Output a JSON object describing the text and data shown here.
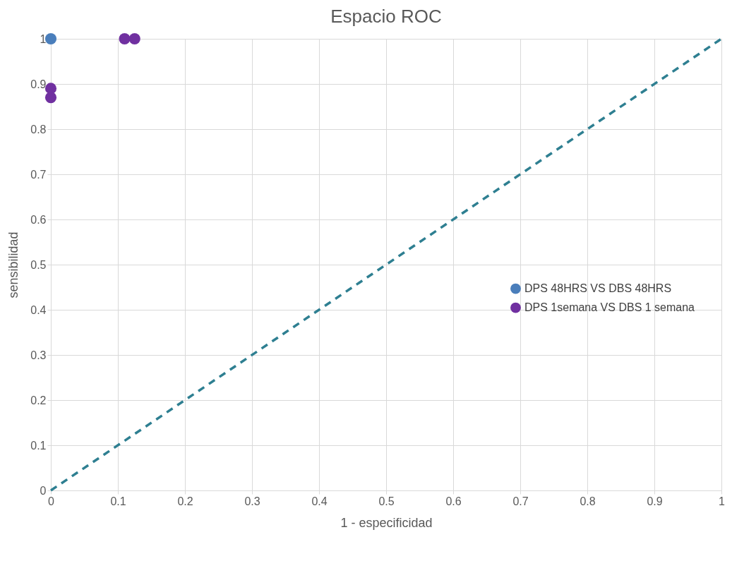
{
  "chart_data": {
    "type": "scatter",
    "title": "Espacio ROC",
    "xlabel": "1 - especificidad",
    "ylabel": "sensibilidad",
    "xlim": [
      0,
      1
    ],
    "ylim": [
      0,
      1
    ],
    "xticks": [
      0,
      0.1,
      0.2,
      0.3,
      0.4,
      0.5,
      0.6,
      0.7,
      0.8,
      0.9,
      1
    ],
    "yticks": [
      0,
      0.1,
      0.2,
      0.3,
      0.4,
      0.5,
      0.6,
      0.7,
      0.8,
      0.9,
      1
    ],
    "grid": true,
    "legend": "right",
    "marker": "circle",
    "series": [
      {
        "name": "DPS 48HRS VS DBS 48HRS",
        "color": "#4a7ebb",
        "x": [
          0
        ],
        "values": [
          1
        ]
      },
      {
        "name": "DPS 1semana VS DBS 1 semana",
        "color": "#7030a0",
        "x": [
          0,
          0,
          0.11,
          0.125
        ],
        "values": [
          0.89,
          0.87,
          1,
          1
        ]
      },
      {
        "type": "line",
        "color": "#2e7f91",
        "line_style": "dashed",
        "marker": "none",
        "x": [
          0,
          1
        ],
        "values": [
          0,
          1
        ]
      }
    ]
  }
}
